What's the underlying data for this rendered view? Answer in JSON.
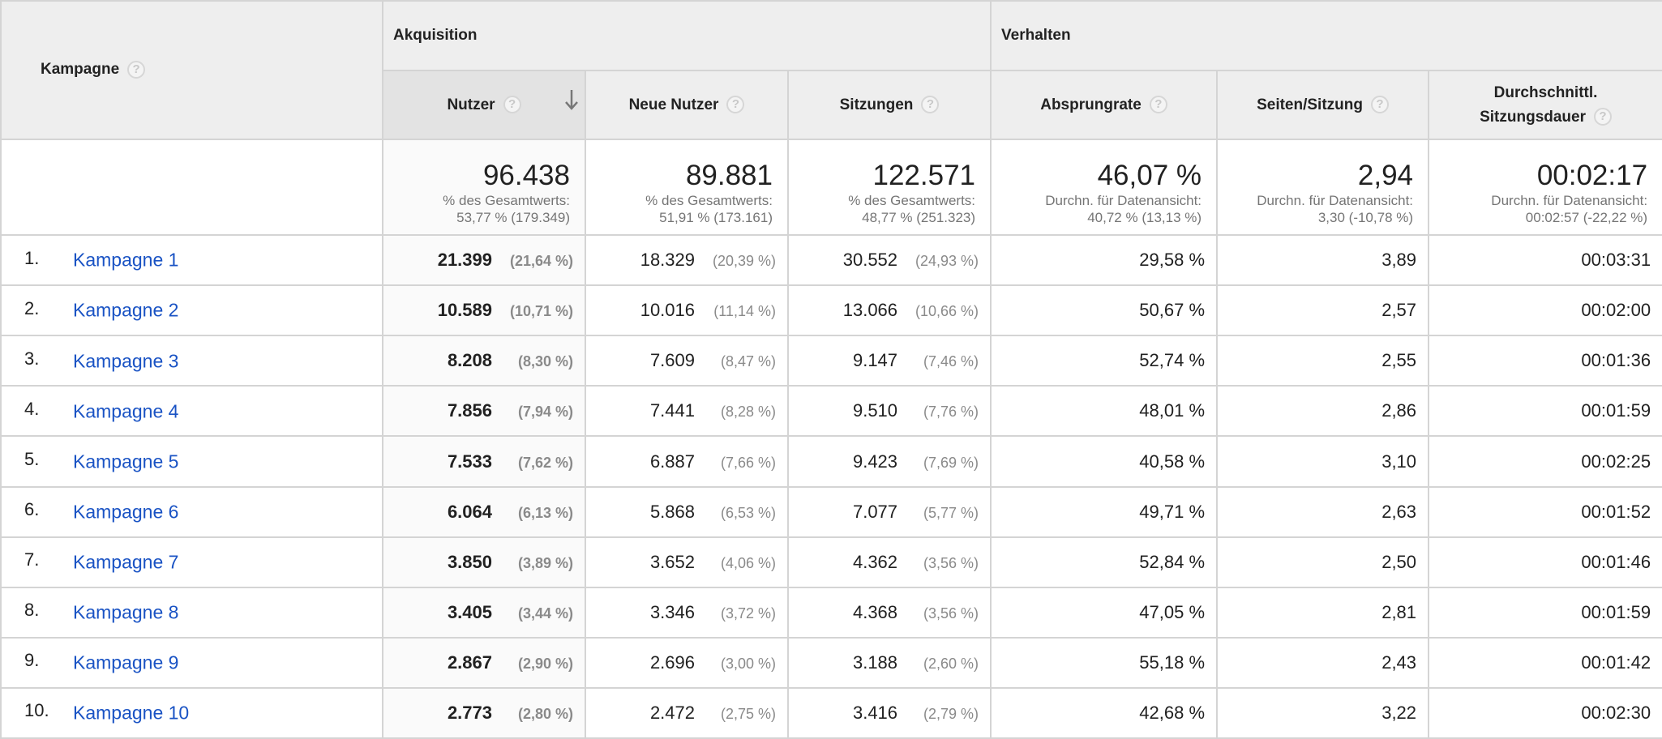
{
  "header": {
    "campaign_label": "Kampagne",
    "group_acquisition": "Akquisition",
    "group_behavior": "Verhalten",
    "columns": [
      "Nutzer",
      "Neue Nutzer",
      "Sitzungen",
      "Absprungrate",
      "Seiten/Sitzung"
    ],
    "duration_label_1": "Durchschnittl.",
    "duration_label_2": "Sitzungsdauer",
    "help_glyph": "?"
  },
  "summary": {
    "users": {
      "value": "96.438",
      "line1": "% des Gesamtwerts:",
      "line2": "53,77 % (179.349)"
    },
    "new_users": {
      "value": "89.881",
      "line1": "% des Gesamtwerts:",
      "line2": "51,91 % (173.161)"
    },
    "sessions": {
      "value": "122.571",
      "line1": "% des Gesamtwerts:",
      "line2": "48,77 % (251.323)"
    },
    "bounce": {
      "value": "46,07 %",
      "line1": "Durchn. für Datenansicht:",
      "line2": "40,72 % (13,13 %)"
    },
    "pages": {
      "value": "2,94",
      "line1": "Durchn. für Datenansicht:",
      "line2": "3,30 (-10,78 %)"
    },
    "duration": {
      "value": "00:02:17",
      "line1": "Durchn. für Datenansicht:",
      "line2": "00:02:57 (-22,22 %)"
    }
  },
  "rows": [
    {
      "index": "1.",
      "name": "Kampagne 1",
      "users": "21.399",
      "users_pct": "(21,64 %)",
      "new_users": "18.329",
      "new_users_pct": "(20,39 %)",
      "sessions": "30.552",
      "sessions_pct": "(24,93 %)",
      "bounce": "29,58 %",
      "pages": "3,89",
      "duration": "00:03:31"
    },
    {
      "index": "2.",
      "name": "Kampagne 2",
      "users": "10.589",
      "users_pct": "(10,71 %)",
      "new_users": "10.016",
      "new_users_pct": "(11,14 %)",
      "sessions": "13.066",
      "sessions_pct": "(10,66 %)",
      "bounce": "50,67 %",
      "pages": "2,57",
      "duration": "00:02:00"
    },
    {
      "index": "3.",
      "name": "Kampagne 3",
      "users": "8.208",
      "users_pct": "(8,30 %)",
      "new_users": "7.609",
      "new_users_pct": "(8,47 %)",
      "sessions": "9.147",
      "sessions_pct": "(7,46 %)",
      "bounce": "52,74 %",
      "pages": "2,55",
      "duration": "00:01:36"
    },
    {
      "index": "4.",
      "name": "Kampagne 4",
      "users": "7.856",
      "users_pct": "(7,94 %)",
      "new_users": "7.441",
      "new_users_pct": "(8,28 %)",
      "sessions": "9.510",
      "sessions_pct": "(7,76 %)",
      "bounce": "48,01 %",
      "pages": "2,86",
      "duration": "00:01:59"
    },
    {
      "index": "5.",
      "name": "Kampagne 5",
      "users": "7.533",
      "users_pct": "(7,62 %)",
      "new_users": "6.887",
      "new_users_pct": "(7,66 %)",
      "sessions": "9.423",
      "sessions_pct": "(7,69 %)",
      "bounce": "40,58 %",
      "pages": "3,10",
      "duration": "00:02:25"
    },
    {
      "index": "6.",
      "name": "Kampagne 6",
      "users": "6.064",
      "users_pct": "(6,13 %)",
      "new_users": "5.868",
      "new_users_pct": "(6,53 %)",
      "sessions": "7.077",
      "sessions_pct": "(5,77 %)",
      "bounce": "49,71 %",
      "pages": "2,63",
      "duration": "00:01:52"
    },
    {
      "index": "7.",
      "name": "Kampagne 7",
      "users": "3.850",
      "users_pct": "(3,89 %)",
      "new_users": "3.652",
      "new_users_pct": "(4,06 %)",
      "sessions": "4.362",
      "sessions_pct": "(3,56 %)",
      "bounce": "52,84 %",
      "pages": "2,50",
      "duration": "00:01:46"
    },
    {
      "index": "8.",
      "name": "Kampagne 8",
      "users": "3.405",
      "users_pct": "(3,44 %)",
      "new_users": "3.346",
      "new_users_pct": "(3,72 %)",
      "sessions": "4.368",
      "sessions_pct": "(3,56 %)",
      "bounce": "47,05 %",
      "pages": "2,81",
      "duration": "00:01:59"
    },
    {
      "index": "9.",
      "name": "Kampagne 9",
      "users": "2.867",
      "users_pct": "(2,90 %)",
      "new_users": "2.696",
      "new_users_pct": "(3,00 %)",
      "sessions": "3.188",
      "sessions_pct": "(2,60 %)",
      "bounce": "55,18 %",
      "pages": "2,43",
      "duration": "00:01:42"
    },
    {
      "index": "10.",
      "name": "Kampagne 10",
      "users": "2.773",
      "users_pct": "(2,80 %)",
      "new_users": "2.472",
      "new_users_pct": "(2,75 %)",
      "sessions": "3.416",
      "sessions_pct": "(2,79 %)",
      "bounce": "42,68 %",
      "pages": "3,22",
      "duration": "00:02:30"
    }
  ],
  "colors": {
    "link": "#1a53c4",
    "header_bg": "#eeeeee",
    "border": "#d4d4d4"
  },
  "icons": {
    "sort": "arrow-down-icon",
    "help": "help-icon"
  }
}
